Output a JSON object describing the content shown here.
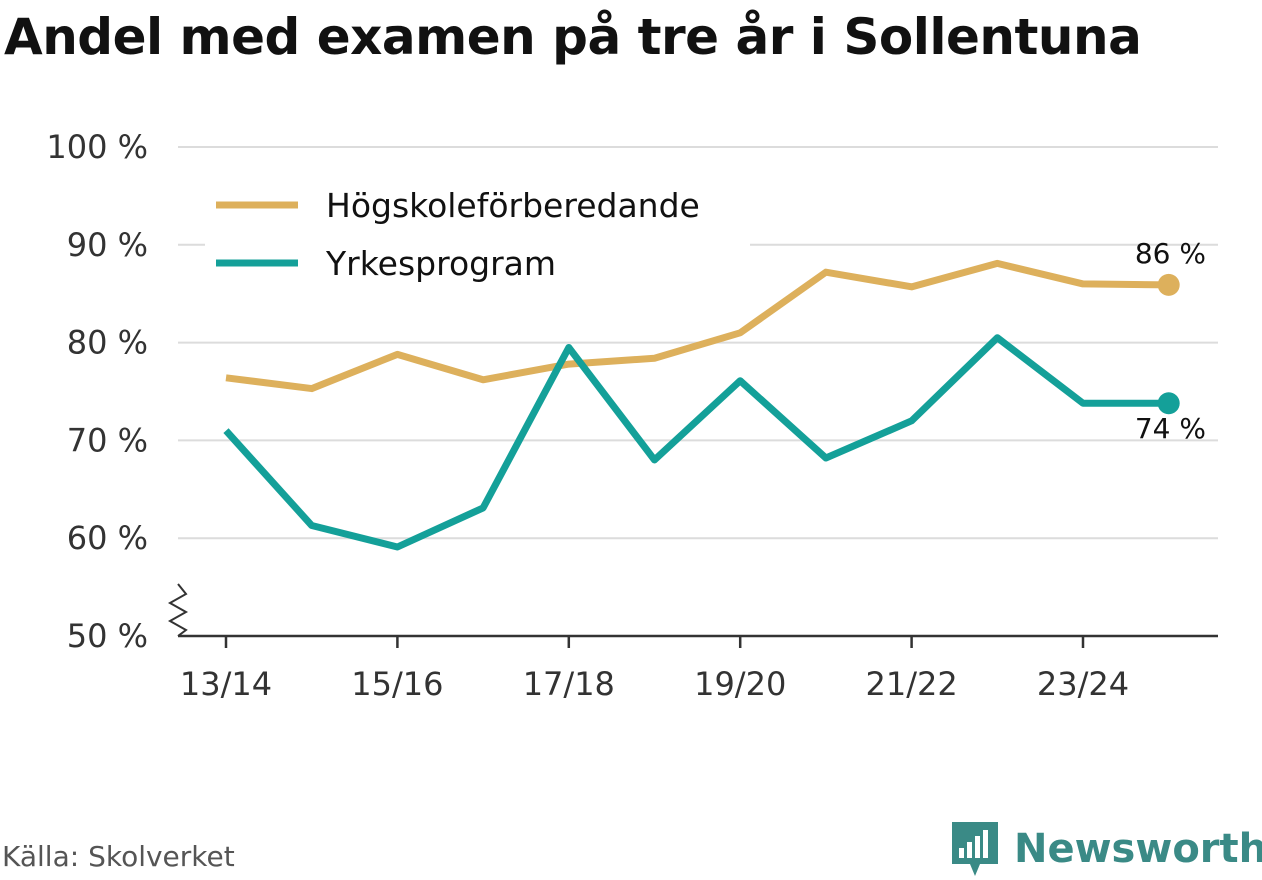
{
  "title": "Andel med examen på tre år i Sollentuna",
  "source": "Källa: Skolverket",
  "brand": {
    "name": "Newsworthy",
    "icon": "bar-chart-logo-icon",
    "color": "#3a8a86"
  },
  "chart_data": {
    "type": "line",
    "x": [
      "13/14",
      "14/15",
      "15/16",
      "16/17",
      "17/18",
      "18/19",
      "19/20",
      "20/21",
      "21/22",
      "22/23",
      "23/24",
      "24/25"
    ],
    "x_tick_labels": [
      "13/14",
      "15/16",
      "17/18",
      "19/20",
      "21/22",
      "23/24"
    ],
    "y_tick_labels": [
      "50 %",
      "60 %",
      "70 %",
      "80 %",
      "90 %",
      "100 %"
    ],
    "ylim": [
      50,
      100
    ],
    "y_axis_break": true,
    "grid": true,
    "legend_position": "top-left",
    "series": [
      {
        "name": "Högskoleförberedande",
        "color": "#ddb05c",
        "values": [
          76.4,
          75.3,
          78.8,
          76.2,
          77.8,
          78.4,
          81.0,
          87.2,
          85.7,
          88.1,
          86.0,
          85.9
        ],
        "end_label": "86 %"
      },
      {
        "name": "Yrkesprogram",
        "color": "#14a099",
        "values": [
          71.0,
          61.3,
          59.1,
          63.1,
          79.5,
          68.0,
          76.1,
          68.2,
          72.0,
          80.5,
          73.8,
          73.8
        ],
        "end_label": "74 %"
      }
    ]
  }
}
